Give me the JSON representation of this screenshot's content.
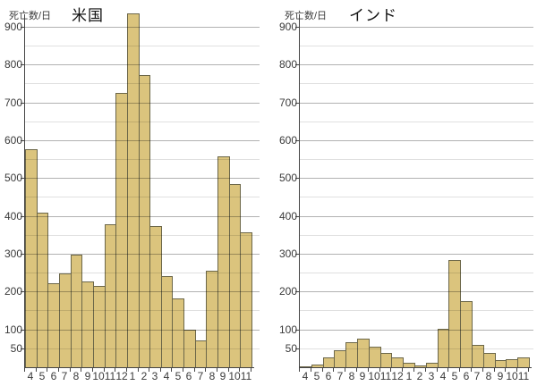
{
  "page": {
    "description_colors": {
      "bar_fill": "#dbc47d",
      "bar_border": "#6c6749",
      "axis": "#444444",
      "grid_major": "#b3b3b3",
      "grid_minor": "#e0e0e0",
      "text": "#3a3a3a"
    }
  },
  "chart_data": [
    {
      "type": "bar",
      "title": "米国",
      "ylabel": "死亡数/日",
      "xlabel": "",
      "categories": [
        "4",
        "5",
        "6",
        "7",
        "8",
        "9",
        "10",
        "11",
        "12",
        "1",
        "2",
        "3",
        "4",
        "5",
        "6",
        "7",
        "8",
        "9",
        "10",
        "11"
      ],
      "values": [
        575,
        408,
        222,
        247,
        297,
        227,
        216,
        378,
        725,
        935,
        772,
        372,
        240,
        182,
        98,
        72,
        255,
        558,
        483,
        357
      ],
      "ylim": [
        0,
        950
      ],
      "ytick_labels": [
        50,
        100,
        200,
        300,
        400,
        500,
        600,
        700,
        800,
        900
      ],
      "grid_step_major": 100,
      "grid_step_minor": 50,
      "legend": "none",
      "grid": "on",
      "bar_color": "#dbc47d",
      "bar_border_color": "#6c6749"
    },
    {
      "type": "bar",
      "title": "インド",
      "ylabel": "死亡数/日",
      "xlabel": "",
      "categories": [
        "4",
        "5",
        "6",
        "7",
        "8",
        "9",
        "10",
        "11",
        "12",
        "1",
        "2",
        "3",
        "4",
        "5",
        "6",
        "7",
        "8",
        "9",
        "10",
        "11"
      ],
      "values": [
        2,
        8,
        26,
        44,
        65,
        75,
        55,
        37,
        25,
        12,
        5,
        12,
        102,
        284,
        174,
        58,
        38,
        19,
        21,
        26
      ],
      "ylim": [
        0,
        950
      ],
      "ytick_labels": [
        50,
        100,
        200,
        300,
        400,
        500,
        600,
        700,
        800,
        900
      ],
      "grid_step_major": 100,
      "grid_step_minor": 50,
      "legend": "none",
      "grid": "on",
      "bar_color": "#dbc47d",
      "bar_border_color": "#6c6749"
    }
  ]
}
